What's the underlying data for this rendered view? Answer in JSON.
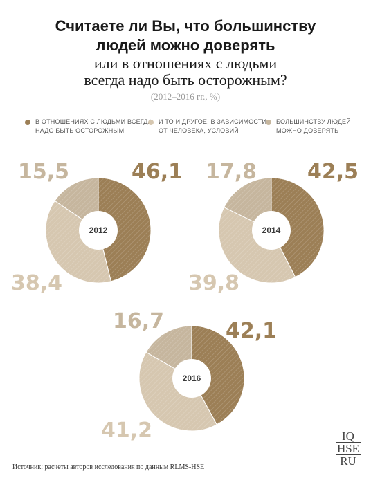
{
  "title": {
    "line1": "Считаете ли Вы, что большинству",
    "line2": "людей можно доверять",
    "line3": "или в отношениях с людьми",
    "line4": "всегда надо быть осторожным?",
    "subtitle": "(2012–2016 гг., %)"
  },
  "legend": [
    {
      "line1": "В ОТНОШЕНИЯХ С ЛЮДЬМИ ВСЕГДА",
      "line2": "НАДО БЫТЬ ОСТОРОЖНЫМ",
      "color": "#9c7f56"
    },
    {
      "line1": "И ТО И ДРУГОЕ, В ЗАВИСИМОСТИ",
      "line2": "ОТ ЧЕЛОВЕКА, УСЛОВИЙ",
      "color": "#d6c7b0"
    },
    {
      "line1": "БОЛЬШИНСТВУ ЛЮДЕЙ",
      "line2": "МОЖНО ДОВЕРЯТЬ",
      "color": "#c6b69e"
    }
  ],
  "chart_data": [
    {
      "type": "pie",
      "title": "2012",
      "categories": [
        "В отношениях с людьми всегда надо быть осторожным",
        "И то и другое, в зависимости от человека, условий",
        "Большинству людей можно доверять"
      ],
      "values": [
        46.1,
        38.4,
        15.5
      ],
      "labels": [
        "46,1",
        "38,4",
        "15,5"
      ]
    },
    {
      "type": "pie",
      "title": "2014",
      "categories": [
        "В отношениях с людьми всегда надо быть осторожным",
        "И то и другое, в зависимости от человека, условий",
        "Большинству людей можно доверять"
      ],
      "values": [
        42.5,
        39.8,
        17.8
      ],
      "labels": [
        "42,5",
        "39,8",
        "17,8"
      ]
    },
    {
      "type": "pie",
      "title": "2016",
      "categories": [
        "В отношениях с людьми всегда надо быть осторожным",
        "И то и другое, в зависимости от человека, условий",
        "Большинству людей можно доверять"
      ],
      "values": [
        42.1,
        41.2,
        16.7
      ],
      "labels": [
        "42,1",
        "41,2",
        "16,7"
      ]
    }
  ],
  "colors": {
    "dark": "#9c7f56",
    "light": "#d6c7b0",
    "mid": "#c6b69e"
  },
  "source": "Источник:  расчеты авторов исследования по данным RLMS-HSE",
  "logo": [
    "IQ",
    "HSE",
    "RU"
  ]
}
